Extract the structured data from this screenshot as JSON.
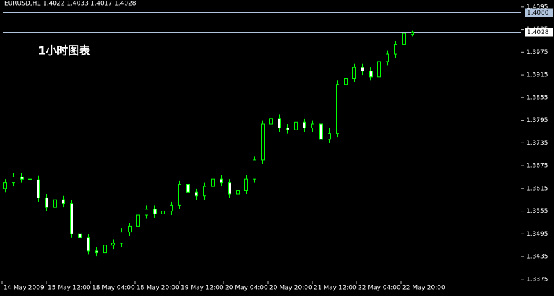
{
  "chart_data": {
    "type": "candlestick",
    "title": "EURUSD,H1  1.4022 1.4033 1.4017 1.4028",
    "annotation": "1小时图表",
    "color": "#00ff00",
    "x": [
      1,
      4,
      7,
      10,
      13,
      16,
      19,
      22,
      25,
      28,
      31,
      34,
      37,
      40,
      43,
      46,
      49,
      52,
      55,
      58,
      61,
      64,
      67,
      70,
      73,
      76,
      79,
      82,
      85,
      88,
      91,
      94,
      97,
      100,
      103,
      106,
      109,
      112,
      115,
      118,
      121,
      124,
      127,
      130,
      133,
      136,
      139,
      142,
      145,
      148
    ],
    "open": [
      1.3615,
      1.363,
      1.3645,
      1.364,
      1.3638,
      1.359,
      1.3565,
      1.3585,
      1.3575,
      1.3495,
      1.3485,
      1.345,
      1.3445,
      1.3465,
      1.347,
      1.35,
      1.3515,
      1.3545,
      1.356,
      1.3548,
      1.3555,
      1.357,
      1.3625,
      1.3605,
      1.3595,
      1.362,
      1.364,
      1.363,
      1.36,
      1.361,
      1.364,
      1.369,
      1.3785,
      1.38,
      1.3775,
      1.377,
      1.379,
      1.3775,
      1.3785,
      1.3745,
      1.376,
      1.389,
      1.3905,
      1.3935,
      1.3925,
      1.391,
      1.395,
      1.397,
      1.3995,
      1.4022
    ],
    "high": [
      1.364,
      1.3655,
      1.3655,
      1.365,
      1.3648,
      1.36,
      1.3595,
      1.3595,
      1.3585,
      1.3505,
      1.3495,
      1.346,
      1.3475,
      1.348,
      1.351,
      1.3525,
      1.3555,
      1.357,
      1.357,
      1.3565,
      1.358,
      1.3635,
      1.3635,
      1.3615,
      1.363,
      1.365,
      1.365,
      1.364,
      1.362,
      1.365,
      1.37,
      1.3795,
      1.382,
      1.381,
      1.3785,
      1.38,
      1.38,
      1.3795,
      1.3795,
      1.3775,
      1.39,
      1.3915,
      1.3945,
      1.3945,
      1.3935,
      1.396,
      1.398,
      1.4005,
      1.404,
      1.4033
    ],
    "low": [
      1.3605,
      1.362,
      1.363,
      1.3628,
      1.358,
      1.3555,
      1.3555,
      1.3565,
      1.3485,
      1.3475,
      1.344,
      1.3435,
      1.3435,
      1.3455,
      1.346,
      1.349,
      1.3505,
      1.3535,
      1.3538,
      1.3538,
      1.3545,
      1.356,
      1.3595,
      1.3585,
      1.3585,
      1.361,
      1.362,
      1.359,
      1.359,
      1.36,
      1.363,
      1.368,
      1.3775,
      1.3765,
      1.376,
      1.376,
      1.3765,
      1.3765,
      1.373,
      1.3735,
      1.375,
      1.388,
      1.3895,
      1.3915,
      1.39,
      1.39,
      1.394,
      1.396,
      1.3985,
      1.4017
    ],
    "close": [
      1.363,
      1.3645,
      1.364,
      1.3638,
      1.359,
      1.3565,
      1.3585,
      1.3575,
      1.3495,
      1.3485,
      1.345,
      1.3445,
      1.3465,
      1.347,
      1.35,
      1.3515,
      1.3545,
      1.356,
      1.3548,
      1.3555,
      1.357,
      1.3625,
      1.3605,
      1.3595,
      1.362,
      1.364,
      1.363,
      1.36,
      1.361,
      1.364,
      1.369,
      1.3785,
      1.38,
      1.3775,
      1.377,
      1.379,
      1.3775,
      1.3785,
      1.3745,
      1.376,
      1.389,
      1.3905,
      1.3935,
      1.3925,
      1.391,
      1.395,
      1.397,
      1.3995,
      1.4025,
      1.4028
    ],
    "xlim": [
      -0.75,
      187.25
    ],
    "xticks": [
      {
        "value": 0,
        "label": "14 May 2009"
      },
      {
        "value": 16,
        "label": "15 May 12:00"
      },
      {
        "value": 32,
        "label": "18 May 04:00"
      },
      {
        "value": 48,
        "label": "18 May 20:00"
      },
      {
        "value": 64,
        "label": "19 May 12:00"
      },
      {
        "value": 80,
        "label": "20 May 04:00"
      },
      {
        "value": 96,
        "label": "20 May 20:00"
      },
      {
        "value": 112,
        "label": "21 May 12:00"
      },
      {
        "value": 128,
        "label": "22 May 04:00"
      },
      {
        "value": 144,
        "label": "22 May 20:00"
      }
    ],
    "ylim": [
      1.3371,
      1.4113
    ],
    "yticks": [
      1.4095,
      1.4035,
      1.3975,
      1.3915,
      1.3855,
      1.3795,
      1.3735,
      1.3675,
      1.3615,
      1.3555,
      1.3495,
      1.3435,
      1.3375
    ],
    "price_lines": [
      {
        "value": 1.408,
        "label": "1.4080"
      },
      {
        "value": 1.4028,
        "label": "1.4028"
      }
    ]
  }
}
